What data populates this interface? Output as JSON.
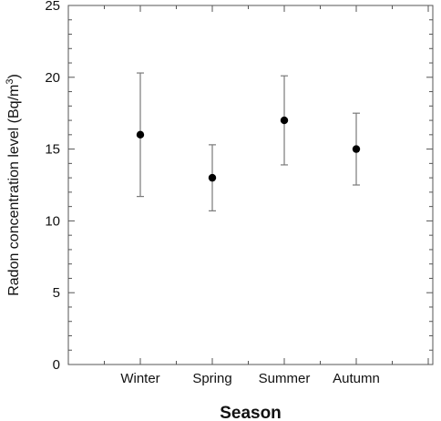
{
  "chart_data": {
    "type": "scatter",
    "error_bars": true,
    "categories": [
      "Winter",
      "Spring",
      "Summer",
      "Autumn"
    ],
    "series": [
      {
        "values": [
          16,
          13,
          17,
          15
        ],
        "error_low": [
          11.7,
          10.7,
          13.9,
          12.5
        ],
        "error_high": [
          20.3,
          15.3,
          20.1,
          17.5
        ]
      }
    ],
    "xlabel": "Season",
    "ylabel": "Radon concentration level (Bq/m",
    "ylabel_superscript": "3",
    "ylabel_suffix": ")",
    "ylim": [
      0,
      25
    ],
    "yticks": [
      "0",
      "5",
      "10",
      "15",
      "20",
      "25"
    ],
    "grid": false,
    "colors": {
      "marker": "#000000",
      "error_bar": "#7a7a7a",
      "axis": "#555555"
    }
  }
}
